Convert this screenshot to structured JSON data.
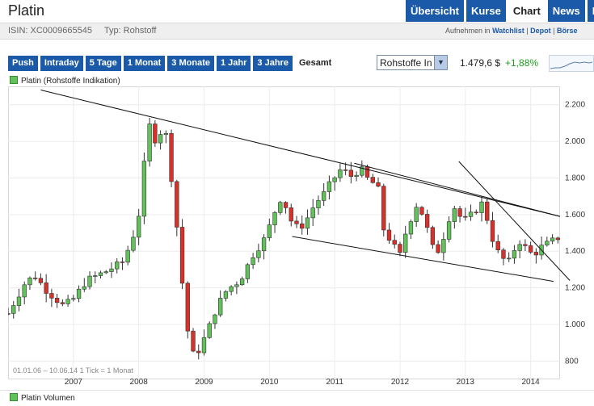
{
  "header": {
    "title": "Platin",
    "tabs": [
      "Übersicht",
      "Kurse",
      "Chart",
      "News",
      "Fo"
    ],
    "active_tab": "Chart"
  },
  "instrument": {
    "isin": "ISIN: XC0009665545",
    "typ": "Typ: Rohstoff"
  },
  "actions": {
    "prefix": "Aufnehmen in",
    "watchlist": "Watchlist",
    "sep1": "|",
    "depot": "Depot",
    "sep2": "|",
    "boerse": "Börse"
  },
  "ranges": {
    "items": [
      "Push",
      "Intraday",
      "5 Tage",
      "1 Monat",
      "3 Monate",
      "1 Jahr",
      "3 Jahre",
      "Gesamt"
    ],
    "active": "Gesamt"
  },
  "exchange_select": {
    "value": "Rohstoffe In"
  },
  "quote": {
    "price": "1.479,6 $",
    "change": "+1,88%"
  },
  "colors": {
    "up": "#61c25a",
    "down": "#d9302a",
    "accent": "#1b5aa8",
    "positive_text": "#1f9e1f"
  },
  "legend": {
    "label": "Platin (Rohstoffe Indikation)"
  },
  "volume_legend": {
    "label": "Platin Volumen"
  },
  "chart_data": {
    "type": "candlestick",
    "title": "Platin (Rohstoffe Indikation)",
    "date_range_note": "01.01.06 – 10.06.14   1 Tick = 1 Monat",
    "x_ticks": [
      "2007",
      "2008",
      "2009",
      "2010",
      "2011",
      "2012",
      "2013",
      "2014"
    ],
    "x_range": [
      2006.0,
      2014.45
    ],
    "y_ticks": [
      800,
      1000,
      1200,
      1400,
      1600,
      1800,
      2000,
      2200
    ],
    "y_tick_labels": [
      "800",
      "1.000",
      "1.200",
      "1.400",
      "1.600",
      "1.800",
      "2.000",
      "2.200"
    ],
    "ylim": [
      700,
      2300
    ],
    "grid": true,
    "trendlines": [
      {
        "name": "upper-resistance-long",
        "from": [
          2006.5,
          2280
        ],
        "to": [
          2014.45,
          1590
        ]
      },
      {
        "name": "channel-upper",
        "from": [
          2011.3,
          1880
        ],
        "to": [
          2014.45,
          1590
        ]
      },
      {
        "name": "channel-lower",
        "from": [
          2010.35,
          1480
        ],
        "to": [
          2014.35,
          1235
        ]
      },
      {
        "name": "steep-downtrend",
        "from": [
          2012.9,
          1890
        ],
        "to": [
          2014.6,
          1240
        ]
      }
    ],
    "monthly_close_anchors": [
      [
        2006.0,
        1060
      ],
      [
        2006.25,
        1220
      ],
      [
        2006.4,
        1270
      ],
      [
        2006.6,
        1180
      ],
      [
        2006.85,
        1100
      ],
      [
        2007.0,
        1140
      ],
      [
        2007.2,
        1240
      ],
      [
        2007.5,
        1290
      ],
      [
        2007.75,
        1340
      ],
      [
        2007.85,
        1420
      ],
      [
        2007.95,
        1520
      ],
      [
        2008.0,
        1600
      ],
      [
        2008.05,
        1760
      ],
      [
        2008.15,
        2100
      ],
      [
        2008.25,
        2010
      ],
      [
        2008.4,
        2080
      ],
      [
        2008.5,
        1800
      ],
      [
        2008.6,
        1480
      ],
      [
        2008.7,
        1100
      ],
      [
        2008.8,
        830
      ],
      [
        2008.92,
        860
      ],
      [
        2009.05,
        960
      ],
      [
        2009.2,
        1100
      ],
      [
        2009.35,
        1190
      ],
      [
        2009.55,
        1240
      ],
      [
        2009.75,
        1380
      ],
      [
        2009.95,
        1480
      ],
      [
        2010.05,
        1590
      ],
      [
        2010.2,
        1710
      ],
      [
        2010.3,
        1580
      ],
      [
        2010.45,
        1520
      ],
      [
        2010.55,
        1560
      ],
      [
        2010.7,
        1660
      ],
      [
        2010.85,
        1720
      ],
      [
        2010.95,
        1780
      ],
      [
        2011.1,
        1850
      ],
      [
        2011.25,
        1810
      ],
      [
        2011.4,
        1850
      ],
      [
        2011.55,
        1770
      ],
      [
        2011.65,
        1780
      ],
      [
        2011.75,
        1520
      ],
      [
        2011.9,
        1430
      ],
      [
        2012.0,
        1380
      ],
      [
        2012.1,
        1520
      ],
      [
        2012.25,
        1650
      ],
      [
        2012.35,
        1600
      ],
      [
        2012.5,
        1420
      ],
      [
        2012.6,
        1400
      ],
      [
        2012.75,
        1580
      ],
      [
        2012.85,
        1650
      ],
      [
        2012.95,
        1560
      ],
      [
        2013.1,
        1600
      ],
      [
        2013.25,
        1660
      ],
      [
        2013.35,
        1560
      ],
      [
        2013.45,
        1420
      ],
      [
        2013.55,
        1370
      ],
      [
        2013.65,
        1330
      ],
      [
        2013.75,
        1410
      ],
      [
        2013.85,
        1460
      ],
      [
        2013.95,
        1400
      ],
      [
        2014.05,
        1380
      ],
      [
        2014.15,
        1420
      ],
      [
        2014.25,
        1440
      ],
      [
        2014.35,
        1460
      ],
      [
        2014.45,
        1479.6
      ]
    ]
  }
}
